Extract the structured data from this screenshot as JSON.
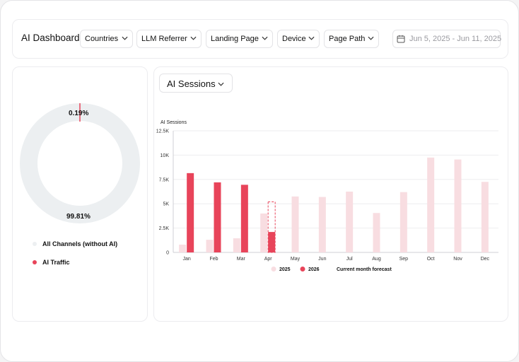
{
  "toolbar": {
    "title": "AI Dashboard",
    "filters": [
      "Countries",
      "LLM Referrer",
      "Landing Page",
      "Device",
      "Page Path"
    ],
    "date_range": "Jun 5, 2025 - Jun 11, 2025"
  },
  "traffic_share": {
    "ai_pct_label": "0.19%",
    "other_pct_label": "99.81%",
    "ai_fraction": 0.0019,
    "legend": [
      {
        "label": "All Channels (without AI)",
        "color": "#eceff1"
      },
      {
        "label": "AI Traffic",
        "color": "#e8445a"
      }
    ]
  },
  "metric_selector": {
    "label": "AI Sessions"
  },
  "chart_data": {
    "type": "bar",
    "ylabel": "AI Sessions",
    "yticks": [
      "0",
      "2.5K",
      "5K",
      "7.5K",
      "10K",
      "12.5K"
    ],
    "ylim": [
      0,
      12500
    ],
    "grid": true,
    "legend_position": "bottom",
    "categories": [
      "Jan",
      "Feb",
      "Mar",
      "Apr",
      "May",
      "Jun",
      "Jul",
      "Aug",
      "Sep",
      "Oct",
      "Nov",
      "Dec"
    ],
    "series": [
      {
        "name": "2025",
        "color": "#f8dde1",
        "values": [
          800,
          1300,
          1450,
          4000,
          5750,
          5700,
          6250,
          4050,
          6200,
          9750,
          9550,
          7250
        ]
      },
      {
        "name": "2026",
        "color": "#e8445a",
        "values": [
          8150,
          7200,
          6950,
          2100,
          null,
          null,
          null,
          null,
          null,
          null,
          null,
          null
        ]
      }
    ],
    "forecast": {
      "name": "Current month forecast",
      "category": "Apr",
      "value": 5200
    }
  }
}
